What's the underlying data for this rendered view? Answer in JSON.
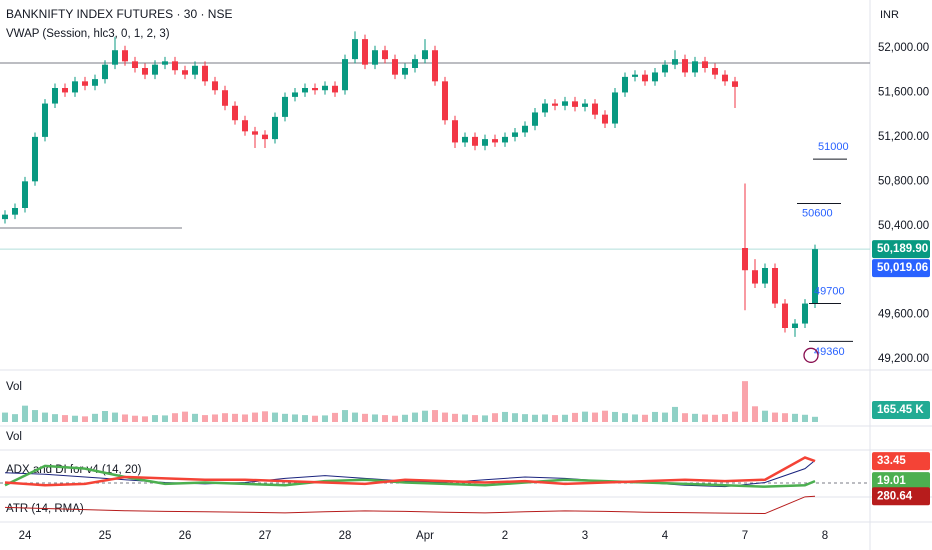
{
  "chart_data": [
    {
      "type": "candlestick",
      "title": "BANKNIFTY INDEX FUTURES · 30 · NSE",
      "subtitle": "VWAP (Session, hlc3, 0, 1, 2, 3)",
      "currency": "INR",
      "categories": [
        null,
        null,
        "24",
        null,
        null,
        null,
        null,
        null,
        null,
        null,
        "25",
        null,
        null,
        null,
        null,
        null,
        null,
        null,
        "26",
        null,
        null,
        null,
        null,
        null,
        null,
        null,
        "27",
        null,
        null,
        null,
        null,
        null,
        null,
        null,
        "28",
        null,
        null,
        null,
        null,
        null,
        null,
        null,
        "Apr",
        null,
        null,
        null,
        null,
        null,
        null,
        null,
        "2",
        null,
        null,
        null,
        null,
        null,
        null,
        null,
        "3",
        null,
        null,
        null,
        null,
        null,
        null,
        null,
        "4",
        null,
        null,
        null,
        null,
        null,
        null,
        null,
        "7",
        null,
        null,
        null,
        null,
        null,
        null,
        null,
        "8"
      ],
      "open": [
        50460,
        50500,
        50560,
        50800,
        51200,
        51500,
        51640,
        51600,
        51700,
        51660,
        51720,
        51850,
        51980,
        51880,
        51820,
        51760,
        51850,
        51880,
        51800,
        51760,
        51840,
        51700,
        51620,
        51480,
        51350,
        51250,
        51220,
        51180,
        51380,
        51560,
        51600,
        51640,
        51620,
        51660,
        51620,
        51900,
        52080,
        51850,
        51980,
        51900,
        51760,
        51820,
        51900,
        51980,
        51700,
        51350,
        51150,
        51200,
        51120,
        51180,
        51150,
        51200,
        51240,
        51300,
        51420,
        51500,
        51480,
        51520,
        51470,
        51500,
        51400,
        51320,
        51600,
        51740,
        51760,
        51700,
        51780,
        51850,
        51900,
        51780,
        51880,
        51820,
        51760,
        51700,
        50200,
        50000,
        49880,
        50020,
        49700,
        49480,
        49520,
        49700,
        null
      ],
      "high": [
        50540,
        50600,
        50840,
        51240,
        51540,
        51680,
        51680,
        51740,
        51740,
        51760,
        51890,
        52100,
        52020,
        51920,
        51860,
        51890,
        51920,
        51920,
        51840,
        51880,
        51880,
        51740,
        51660,
        51520,
        51390,
        51290,
        51260,
        51420,
        51600,
        51640,
        51680,
        51680,
        51700,
        51700,
        51940,
        52150,
        52120,
        52020,
        52020,
        51940,
        51860,
        51940,
        52080,
        52020,
        51740,
        51390,
        51240,
        51240,
        51220,
        51220,
        51240,
        51280,
        51340,
        51460,
        51540,
        51540,
        51560,
        51560,
        51540,
        51540,
        51440,
        51640,
        51780,
        51800,
        51800,
        51820,
        51890,
        51980,
        51940,
        51920,
        51920,
        51860,
        51800,
        51740,
        50780,
        50100,
        50060,
        50060,
        49740,
        49560,
        49740,
        50230,
        null
      ],
      "low": [
        50420,
        50460,
        50520,
        50760,
        51160,
        51460,
        51560,
        51560,
        51620,
        51620,
        51680,
        51810,
        51840,
        51780,
        51720,
        51720,
        51810,
        51760,
        51720,
        51720,
        51660,
        51580,
        51440,
        51310,
        51210,
        51100,
        51100,
        51140,
        51340,
        51520,
        51560,
        51580,
        51580,
        51560,
        51580,
        51860,
        51810,
        51810,
        51860,
        51720,
        51720,
        51780,
        51860,
        51660,
        51310,
        51100,
        51110,
        51080,
        51080,
        51110,
        51110,
        51160,
        51200,
        51260,
        51380,
        51440,
        51440,
        51430,
        51430,
        51360,
        51280,
        51280,
        51560,
        51700,
        51660,
        51660,
        51740,
        51810,
        51740,
        51740,
        51780,
        51720,
        51660,
        51460,
        49640,
        49840,
        49840,
        49660,
        49440,
        49400,
        49480,
        49660,
        null
      ],
      "close": [
        50500,
        50560,
        50800,
        51200,
        51500,
        51640,
        51600,
        51700,
        51660,
        51720,
        51850,
        51980,
        51880,
        51820,
        51760,
        51850,
        51880,
        51800,
        51760,
        51840,
        51700,
        51620,
        51480,
        51350,
        51250,
        51220,
        51180,
        51380,
        51560,
        51600,
        51640,
        51620,
        51660,
        51600,
        51900,
        52080,
        51850,
        51980,
        51900,
        51760,
        51820,
        51900,
        51980,
        51700,
        51350,
        51150,
        51200,
        51120,
        51180,
        51150,
        51200,
        51240,
        51300,
        51420,
        51500,
        51480,
        51520,
        51470,
        51500,
        51400,
        51320,
        51600,
        51740,
        51760,
        51700,
        51780,
        51850,
        51900,
        51780,
        51880,
        51820,
        51760,
        51700,
        51650,
        50000,
        49880,
        50020,
        49700,
        49480,
        49520,
        49700,
        50189.9,
        null
      ],
      "up_color": "#089981",
      "down_color": "#f23645",
      "ylim": [
        49102,
        52432
      ],
      "yticks": [
        {
          "value": 52000,
          "label": "52,000.00"
        },
        {
          "value": 51600,
          "label": "51,600.00"
        },
        {
          "value": 51200,
          "label": "51,200.00"
        },
        {
          "value": 50800,
          "label": "50,800.00"
        },
        {
          "value": 50400,
          "label": "50,400.00"
        },
        {
          "value": 49600,
          "label": "49,600.00"
        },
        {
          "value": 49200,
          "label": "49,200.00"
        }
      ],
      "levels": [
        51000,
        50600,
        49700,
        49360
      ],
      "hlines": [
        51865,
        50380
      ],
      "last_price": {
        "value": 50189.9,
        "label": "50,189.90"
      },
      "vwap": {
        "value": 50019.06,
        "label": "50,019.06"
      }
    },
    {
      "type": "bar",
      "title": "Vol",
      "values": [
        300,
        250,
        520,
        380,
        300,
        250,
        220,
        200,
        180,
        260,
        350,
        300,
        240,
        200,
        180,
        220,
        210,
        280,
        330,
        260,
        220,
        240,
        280,
        260,
        240,
        300,
        340,
        300,
        260,
        240,
        220,
        200,
        210,
        290,
        380,
        300,
        260,
        240,
        220,
        200,
        230,
        300,
        360,
        380,
        300,
        260,
        240,
        220,
        210,
        280,
        320,
        280,
        250,
        230,
        240,
        220,
        230,
        290,
        330,
        300,
        360,
        320,
        280,
        240,
        230,
        320,
        300,
        480,
        280,
        260,
        240,
        230,
        250,
        330,
        1300,
        500,
        360,
        300,
        280,
        260,
        230,
        165.45,
        null
      ],
      "ylim": [
        0,
        1400
      ],
      "last_value_label": "165.45 K"
    },
    {
      "type": "empty",
      "title": "Vol"
    },
    {
      "type": "line",
      "title": "ADX and DI for v4 (14, 20)",
      "x": [
        0,
        4,
        8,
        12,
        16,
        20,
        24,
        28,
        32,
        36,
        40,
        44,
        48,
        52,
        56,
        60,
        64,
        68,
        72,
        76,
        80,
        81
      ],
      "ylim": [
        9,
        40
      ],
      "series": [
        {
          "color": "#1a237e",
          "values": [
            25,
            24,
            22,
            20,
            18,
            17,
            18,
            21,
            23,
            21,
            19,
            18,
            20,
            22,
            21,
            19,
            18,
            16,
            15,
            18,
            28,
            34
          ]
        },
        {
          "color": "#4caf50",
          "values": [
            16,
            30,
            28,
            22,
            17,
            18,
            17,
            16,
            19,
            20,
            18,
            17,
            16,
            18,
            20,
            19,
            18,
            17,
            16,
            15,
            16,
            19.01
          ]
        },
        {
          "color": "#f44336",
          "values": [
            18,
            16,
            17,
            22,
            21,
            20,
            20,
            19,
            18,
            17,
            20,
            19,
            18,
            19,
            17,
            18,
            19,
            20,
            19,
            20,
            36,
            33.45
          ]
        }
      ]
    },
    {
      "type": "line",
      "title": "ATR (14, RMA)",
      "x": [
        0,
        4,
        8,
        12,
        16,
        20,
        24,
        28,
        32,
        36,
        40,
        44,
        48,
        52,
        56,
        60,
        64,
        68,
        72,
        76,
        80,
        81
      ],
      "ylim": [
        150,
        300
      ],
      "series": [
        {
          "color": "#b71c1c",
          "values": [
            230,
            225,
            220,
            215,
            212,
            210,
            208,
            205,
            210,
            214,
            212,
            208,
            205,
            210,
            214,
            212,
            208,
            206,
            204,
            202,
            278,
            280.64
          ]
        }
      ]
    }
  ]
}
